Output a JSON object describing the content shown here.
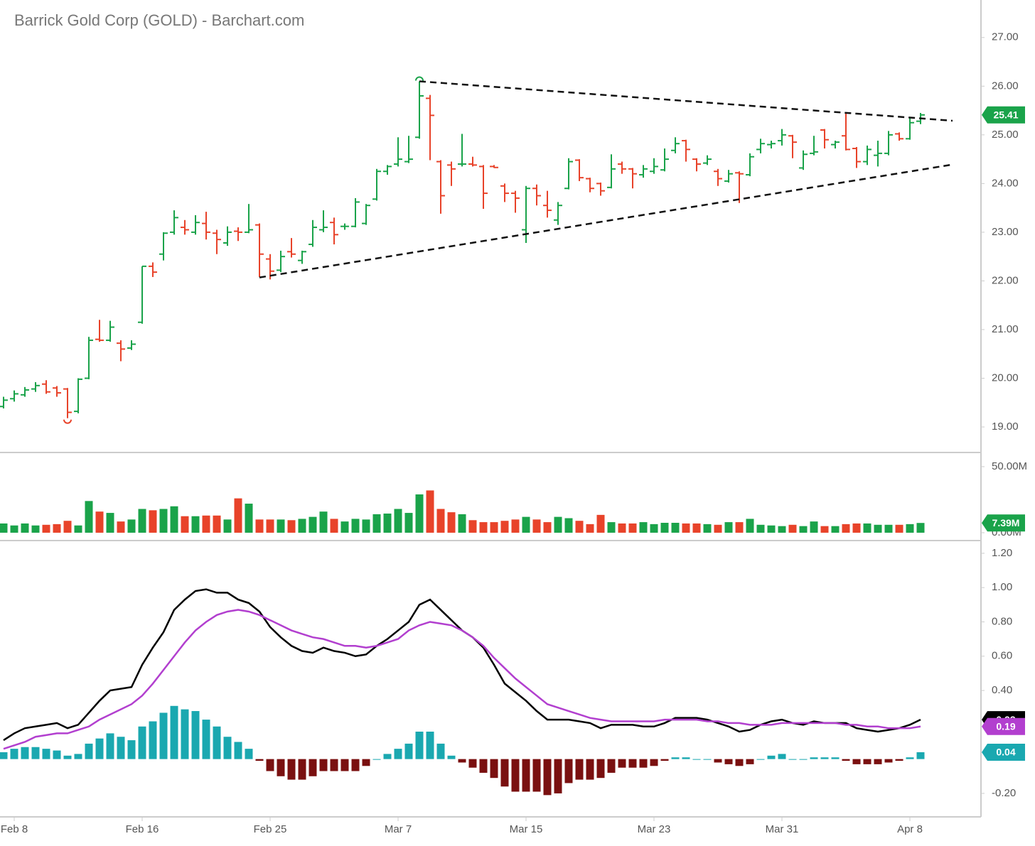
{
  "chart_data": [
    {
      "type": "ohlc",
      "title": "Barrick Gold Corp (GOLD) - Barchart.com",
      "up_color": "#1aa34a",
      "down_color": "#e8432a",
      "open": [
        19.42,
        19.58,
        19.66,
        19.78,
        19.88,
        19.8,
        19.78,
        19.32,
        20.0,
        20.8,
        20.78,
        20.72,
        20.62,
        21.15,
        22.3,
        22.55,
        23.0,
        23.1,
        23.0,
        23.18,
        22.98,
        22.78,
        23.02,
        23.0,
        23.15,
        22.45,
        22.22,
        22.6,
        22.42,
        22.75,
        23.05,
        23.2,
        23.12,
        23.12,
        23.18,
        23.68,
        24.25,
        24.4,
        24.45,
        24.95,
        25.75,
        24.45,
        24.38,
        24.4,
        24.4,
        24.35,
        24.35,
        23.95,
        23.8,
        23.05,
        23.9,
        23.55,
        23.25,
        23.9,
        24.48,
        24.1,
        24.0,
        23.92,
        24.4,
        24.3,
        24.18,
        24.25,
        24.28,
        24.68,
        24.88,
        24.5,
        24.42,
        24.25,
        24.05,
        24.22,
        24.18,
        24.7,
        24.8,
        24.88,
        24.98,
        24.32,
        24.62,
        25.1,
        24.8,
        24.98,
        24.72,
        24.45,
        24.58,
        24.62,
        25.02,
        24.92,
        25.28
      ],
      "high": [
        19.62,
        19.75,
        19.82,
        19.92,
        19.96,
        19.84,
        19.8,
        20.0,
        20.85,
        21.2,
        21.18,
        20.78,
        20.78,
        22.3,
        22.38,
        23.0,
        23.45,
        23.25,
        23.35,
        23.42,
        23.05,
        23.12,
        23.1,
        23.58,
        23.18,
        22.55,
        22.62,
        22.88,
        22.62,
        23.25,
        23.45,
        23.3,
        23.18,
        23.7,
        23.58,
        24.3,
        24.38,
        24.95,
        24.98,
        26.1,
        25.82,
        24.48,
        24.45,
        25.02,
        24.55,
        24.38,
        24.38,
        24.0,
        23.85,
        23.95,
        23.98,
        23.85,
        23.62,
        24.52,
        24.5,
        24.12,
        24.02,
        24.6,
        24.45,
        24.32,
        24.38,
        24.52,
        24.72,
        24.95,
        24.9,
        24.52,
        24.58,
        24.3,
        24.28,
        24.25,
        24.62,
        24.92,
        24.88,
        25.12,
        25.0,
        24.68,
        24.98,
        25.12,
        24.88,
        25.45,
        24.75,
        24.78,
        24.88,
        25.08,
        25.05,
        25.35,
        25.45
      ],
      "low": [
        19.38,
        19.52,
        19.62,
        19.72,
        19.68,
        19.62,
        19.18,
        19.28,
        19.98,
        20.75,
        20.75,
        20.35,
        20.58,
        21.12,
        22.08,
        22.42,
        22.95,
        22.95,
        22.95,
        22.85,
        22.55,
        22.72,
        22.82,
        22.98,
        22.08,
        22.03,
        22.18,
        22.48,
        22.35,
        22.7,
        23.0,
        22.75,
        23.05,
        23.1,
        23.15,
        23.65,
        24.18,
        24.35,
        24.42,
        24.92,
        24.48,
        23.38,
        23.95,
        24.35,
        24.35,
        23.48,
        24.32,
        23.62,
        23.4,
        22.78,
        23.55,
        23.3,
        23.15,
        23.88,
        24.05,
        23.82,
        23.75,
        23.9,
        24.2,
        23.9,
        24.12,
        24.2,
        24.25,
        24.62,
        24.45,
        24.25,
        24.38,
        23.95,
        24.02,
        23.6,
        24.15,
        24.62,
        24.72,
        24.78,
        24.52,
        24.28,
        24.58,
        24.72,
        24.72,
        24.68,
        24.32,
        24.38,
        24.35,
        24.58,
        24.88,
        24.9,
        25.22
      ],
      "close": [
        19.55,
        19.68,
        19.76,
        19.85,
        19.72,
        19.7,
        19.3,
        19.98,
        20.78,
        20.78,
        21.05,
        20.6,
        20.7,
        22.3,
        22.18,
        22.98,
        23.3,
        23.05,
        23.2,
        23.0,
        22.85,
        23.0,
        23.0,
        23.05,
        22.55,
        22.2,
        22.5,
        22.55,
        22.6,
        23.1,
        23.1,
        22.95,
        23.12,
        23.62,
        23.55,
        24.25,
        24.35,
        24.5,
        24.5,
        25.8,
        25.4,
        23.75,
        24.3,
        24.4,
        24.38,
        23.8,
        24.33,
        23.8,
        23.7,
        23.9,
        23.75,
        23.45,
        23.55,
        24.45,
        24.12,
        23.9,
        23.85,
        24.3,
        24.3,
        24.2,
        24.3,
        24.35,
        24.5,
        24.82,
        24.7,
        24.4,
        24.5,
        24.1,
        24.2,
        24.2,
        24.55,
        24.82,
        24.82,
        25.0,
        24.85,
        24.6,
        24.65,
        24.9,
        24.85,
        24.7,
        24.45,
        24.7,
        24.62,
        25.0,
        24.92,
        25.25,
        25.41
      ],
      "trendlines": [
        {
          "x": [
            39,
            89
          ],
          "y": [
            26.1,
            25.29
          ]
        },
        {
          "x": [
            24,
            89
          ],
          "y": [
            22.07,
            24.39
          ]
        }
      ],
      "ylim": [
        18.49,
        27.77
      ],
      "yticks": [
        {
          "value": 27,
          "label": "27.00"
        },
        {
          "value": 26,
          "label": "26.00"
        },
        {
          "value": 25,
          "label": "25.00"
        },
        {
          "value": 24,
          "label": "24.00"
        },
        {
          "value": 23,
          "label": "23.00"
        },
        {
          "value": 22,
          "label": "22.00"
        },
        {
          "value": 21,
          "label": "21.00"
        },
        {
          "value": 20,
          "label": "20.00"
        },
        {
          "value": 19,
          "label": "19.00"
        }
      ]
    },
    {
      "type": "bar",
      "up_color": "#1aa34a",
      "down_color": "#e8432a",
      "values": [
        7,
        5.5,
        7,
        5.5,
        6,
        6.5,
        9,
        5.5,
        24,
        16,
        15,
        8.5,
        10,
        18,
        17,
        18,
        20,
        12.5,
        12.5,
        13,
        13,
        10,
        26,
        22,
        10,
        10,
        10,
        9.5,
        10.5,
        12,
        16,
        10.5,
        8.5,
        10.5,
        10,
        14,
        14.5,
        18,
        15,
        29,
        32,
        18,
        15.5,
        14,
        9.5,
        8,
        8,
        9,
        10,
        12,
        10,
        8,
        12,
        11,
        9,
        6.5,
        13.5,
        8,
        7,
        7,
        8,
        6.5,
        7.5,
        7.5,
        7,
        7,
        6.5,
        6,
        8,
        8,
        10.5,
        6,
        5.5,
        5,
        6,
        5,
        8.5,
        5,
        5,
        6.5,
        7,
        7,
        6,
        6,
        6,
        6.5,
        7.39
      ],
      "badge": {
        "value": 7.39,
        "label": "7.39M"
      },
      "ylim": [
        -5.4,
        60.2
      ],
      "yticks": [
        {
          "value": 50,
          "label": "50.00M"
        },
        {
          "value": 0,
          "label": "0.00M"
        }
      ]
    },
    {
      "type": "macd",
      "categories": [
        null,
        "Feb 8",
        null,
        null,
        null,
        null,
        null,
        null,
        null,
        null,
        null,
        null,
        null,
        "Feb 16",
        null,
        null,
        null,
        null,
        null,
        null,
        null,
        null,
        null,
        null,
        null,
        "Feb 25",
        null,
        null,
        null,
        null,
        null,
        null,
        null,
        null,
        null,
        null,
        null,
        "Mar 7",
        null,
        null,
        null,
        null,
        null,
        null,
        null,
        null,
        null,
        null,
        null,
        "Mar 15",
        null,
        null,
        null,
        null,
        null,
        null,
        null,
        null,
        null,
        null,
        null,
        "Mar 23",
        null,
        null,
        null,
        null,
        null,
        null,
        null,
        null,
        null,
        null,
        null,
        "Mar 31",
        null,
        null,
        null,
        null,
        null,
        null,
        null,
        null,
        null,
        null,
        null,
        "Apr 8",
        null
      ],
      "series": [
        {
          "color": "#000000",
          "values": [
            0.11,
            0.15,
            0.18,
            0.19,
            0.2,
            0.21,
            0.18,
            0.2,
            0.27,
            0.34,
            0.4,
            0.41,
            0.42,
            0.55,
            0.65,
            0.74,
            0.87,
            0.93,
            0.98,
            0.99,
            0.97,
            0.97,
            0.93,
            0.91,
            0.86,
            0.77,
            0.71,
            0.66,
            0.63,
            0.62,
            0.65,
            0.63,
            0.62,
            0.6,
            0.61,
            0.66,
            0.7,
            0.75,
            0.8,
            0.9,
            0.93,
            0.87,
            0.81,
            0.75,
            0.71,
            0.65,
            0.55,
            0.44,
            0.39,
            0.34,
            0.28,
            0.23,
            0.23,
            0.23,
            0.22,
            0.21,
            0.18,
            0.2,
            0.2,
            0.2,
            0.19,
            0.19,
            0.21,
            0.24,
            0.24,
            0.24,
            0.23,
            0.21,
            0.19,
            0.16,
            0.17,
            0.2,
            0.22,
            0.23,
            0.21,
            0.2,
            0.22,
            0.21,
            0.21,
            0.21,
            0.18,
            0.17,
            0.16,
            0.17,
            0.18,
            0.2,
            0.23
          ]
        },
        {
          "color": "#b23fcf",
          "values": [
            0.06,
            0.08,
            0.1,
            0.13,
            0.14,
            0.15,
            0.15,
            0.17,
            0.19,
            0.23,
            0.26,
            0.29,
            0.32,
            0.37,
            0.44,
            0.52,
            0.6,
            0.68,
            0.75,
            0.8,
            0.84,
            0.86,
            0.87,
            0.86,
            0.84,
            0.81,
            0.78,
            0.75,
            0.73,
            0.71,
            0.7,
            0.68,
            0.66,
            0.66,
            0.65,
            0.66,
            0.68,
            0.7,
            0.75,
            0.78,
            0.8,
            0.79,
            0.78,
            0.75,
            0.71,
            0.66,
            0.59,
            0.53,
            0.47,
            0.42,
            0.37,
            0.32,
            0.3,
            0.28,
            0.26,
            0.24,
            0.23,
            0.22,
            0.22,
            0.22,
            0.22,
            0.22,
            0.23,
            0.23,
            0.23,
            0.23,
            0.22,
            0.22,
            0.21,
            0.21,
            0.2,
            0.2,
            0.2,
            0.21,
            0.21,
            0.21,
            0.21,
            0.21,
            0.21,
            0.2,
            0.2,
            0.19,
            0.19,
            0.18,
            0.18,
            0.18,
            0.19
          ]
        },
        {
          "type": "histogram",
          "pos_color": "#1aa8b0",
          "neg_color": "#7a1010",
          "values": [
            0.04,
            0.06,
            0.07,
            0.07,
            0.06,
            0.05,
            0.02,
            0.03,
            0.09,
            0.12,
            0.15,
            0.13,
            0.11,
            0.19,
            0.22,
            0.27,
            0.31,
            0.29,
            0.28,
            0.23,
            0.19,
            0.13,
            0.1,
            0.06,
            -0.01,
            -0.07,
            -0.1,
            -0.12,
            -0.12,
            -0.1,
            -0.07,
            -0.07,
            -0.07,
            -0.07,
            -0.04,
            0.0,
            0.03,
            0.06,
            0.09,
            0.16,
            0.16,
            0.09,
            0.02,
            -0.02,
            -0.05,
            -0.08,
            -0.11,
            -0.16,
            -0.19,
            -0.19,
            -0.19,
            -0.21,
            -0.2,
            -0.14,
            -0.12,
            -0.12,
            -0.11,
            -0.08,
            -0.05,
            -0.05,
            -0.05,
            -0.04,
            -0.01,
            0.01,
            0.01,
            0.0,
            0.0,
            -0.02,
            -0.03,
            -0.04,
            -0.03,
            0.0,
            0.02,
            0.03,
            0.0,
            0.0,
            0.01,
            0.01,
            0.01,
            -0.01,
            -0.03,
            -0.03,
            -0.03,
            -0.02,
            -0.01,
            0.01,
            0.04
          ]
        }
      ],
      "ylim": [
        -0.337,
        1.27
      ],
      "yticks": [
        {
          "value": 1.2,
          "label": "1.20"
        },
        {
          "value": 1.0,
          "label": "1.00"
        },
        {
          "value": 0.8,
          "label": "0.80"
        },
        {
          "value": 0.6,
          "label": "0.60"
        },
        {
          "value": 0.4,
          "label": "0.40"
        },
        {
          "value": -0.2,
          "label": "-0.20"
        }
      ]
    }
  ]
}
